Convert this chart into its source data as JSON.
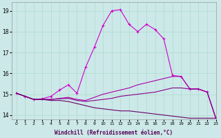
{
  "xlabel": "Windchill (Refroidissement éolien,°C)",
  "background_color": "#cce8e8",
  "grid_color": "#aaddcc",
  "xlim": [
    -0.5,
    23
  ],
  "ylim": [
    13.8,
    19.4
  ],
  "yticks": [
    14,
    15,
    16,
    17,
    18,
    19
  ],
  "xticks": [
    0,
    1,
    2,
    3,
    4,
    5,
    6,
    7,
    8,
    9,
    10,
    11,
    12,
    13,
    14,
    15,
    16,
    17,
    18,
    19,
    20,
    21,
    22,
    23
  ],
  "lines": [
    {
      "x": [
        0,
        1,
        2,
        3,
        4,
        5,
        6,
        7,
        8,
        9,
        10,
        11,
        12,
        13,
        14,
        15,
        16,
        17,
        18,
        19,
        20,
        21,
        22,
        23
      ],
      "y": [
        15.05,
        14.9,
        14.75,
        14.78,
        14.9,
        15.2,
        15.45,
        15.05,
        16.3,
        17.25,
        18.3,
        19.0,
        19.05,
        18.35,
        18.0,
        18.35,
        18.1,
        17.65,
        15.9,
        15.85,
        15.25,
        15.25,
        15.1,
        13.85
      ],
      "marker": "+",
      "linewidth": 0.8,
      "markersize": 3.5,
      "color": "#cc00cc"
    },
    {
      "x": [
        0,
        1,
        2,
        3,
        4,
        5,
        6,
        7,
        8,
        9,
        10,
        11,
        12,
        13,
        14,
        15,
        16,
        17,
        18,
        19,
        20,
        21,
        22,
        23
      ],
      "y": [
        15.05,
        14.9,
        14.75,
        14.75,
        14.75,
        14.8,
        14.85,
        14.75,
        14.7,
        14.85,
        15.0,
        15.1,
        15.2,
        15.3,
        15.45,
        15.55,
        15.65,
        15.75,
        15.85,
        15.85,
        15.25,
        15.25,
        15.1,
        13.85
      ],
      "marker": null,
      "linewidth": 0.8,
      "color": "#aa00aa"
    },
    {
      "x": [
        0,
        1,
        2,
        3,
        4,
        5,
        6,
        7,
        8,
        9,
        10,
        11,
        12,
        13,
        14,
        15,
        16,
        17,
        18,
        19,
        20,
        21,
        22,
        23
      ],
      "y": [
        15.05,
        14.9,
        14.75,
        14.75,
        14.75,
        14.78,
        14.8,
        14.7,
        14.65,
        14.7,
        14.75,
        14.8,
        14.9,
        14.95,
        15.0,
        15.05,
        15.1,
        15.2,
        15.3,
        15.3,
        15.25,
        15.25,
        15.1,
        13.85
      ],
      "marker": null,
      "linewidth": 0.8,
      "color": "#880088"
    },
    {
      "x": [
        0,
        1,
        2,
        3,
        4,
        5,
        6,
        7,
        8,
        9,
        10,
        11,
        12,
        13,
        14,
        15,
        16,
        17,
        18,
        19,
        20,
        21,
        22,
        23
      ],
      "y": [
        15.05,
        14.9,
        14.75,
        14.75,
        14.7,
        14.7,
        14.65,
        14.55,
        14.45,
        14.35,
        14.3,
        14.25,
        14.2,
        14.2,
        14.15,
        14.1,
        14.05,
        14.0,
        13.95,
        13.9,
        13.85,
        13.85,
        13.85,
        13.85
      ],
      "marker": null,
      "linewidth": 0.8,
      "color": "#660066"
    }
  ]
}
